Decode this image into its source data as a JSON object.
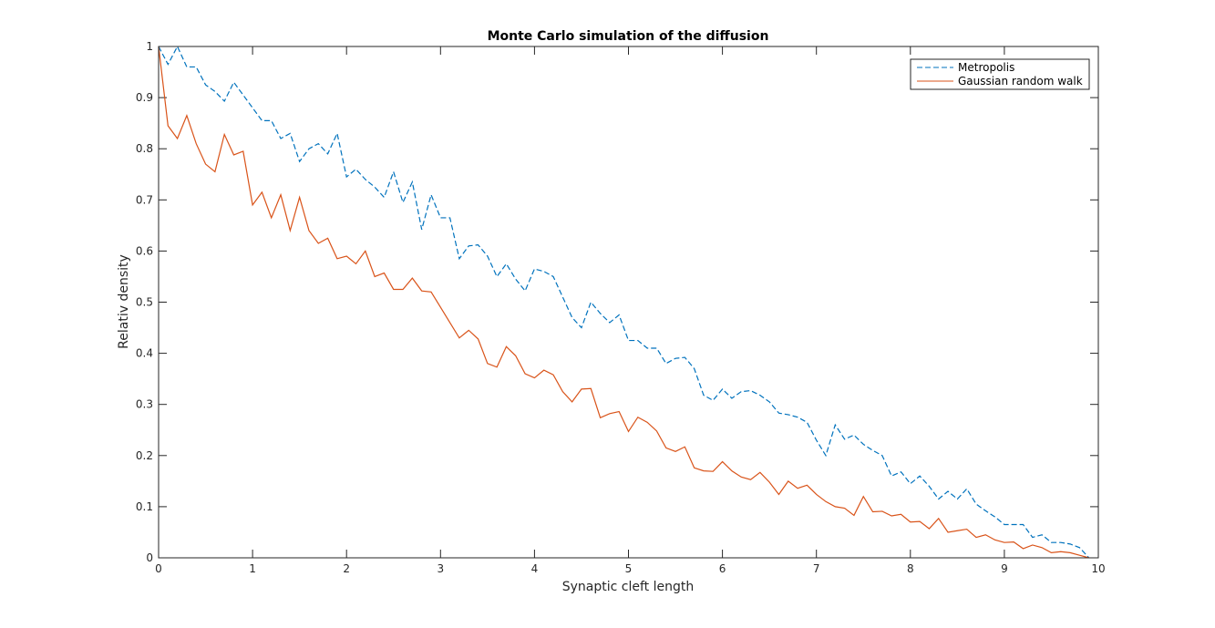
{
  "chart_data": {
    "type": "line",
    "title": "Monte Carlo simulation of the diffusion",
    "xlabel": "Synaptic cleft length",
    "ylabel": "Relativ density",
    "xlim": [
      0,
      10
    ],
    "ylim": [
      0,
      1
    ],
    "xticks": [
      "0",
      "1",
      "2",
      "3",
      "4",
      "5",
      "6",
      "7",
      "8",
      "9",
      "10"
    ],
    "yticks": [
      "0",
      "0.1",
      "0.2",
      "0.3",
      "0.4",
      "0.5",
      "0.6",
      "0.7",
      "0.8",
      "0.9",
      "1"
    ],
    "grid": false,
    "legend_position": "top-right",
    "x": [
      0.0,
      0.1,
      0.2,
      0.3,
      0.4,
      0.5,
      0.6,
      0.7,
      0.8,
      0.9,
      1.0,
      1.1,
      1.2,
      1.3,
      1.4,
      1.5,
      1.6,
      1.7,
      1.8,
      1.9,
      2.0,
      2.1,
      2.2,
      2.3,
      2.4,
      2.5,
      2.6,
      2.7,
      2.8,
      2.9,
      3.0,
      3.1,
      3.2,
      3.3,
      3.4,
      3.5,
      3.6,
      3.7,
      3.8,
      3.9,
      4.0,
      4.1,
      4.2,
      4.3,
      4.4,
      4.5,
      4.6,
      4.7,
      4.8,
      4.9,
      5.0,
      5.1,
      5.2,
      5.3,
      5.4,
      5.5,
      5.6,
      5.7,
      5.8,
      5.9,
      6.0,
      6.1,
      6.2,
      6.3,
      6.4,
      6.5,
      6.6,
      6.7,
      6.8,
      6.9,
      7.0,
      7.1,
      7.2,
      7.3,
      7.4,
      7.5,
      7.6,
      7.7,
      7.8,
      7.9,
      8.0,
      8.1,
      8.2,
      8.3,
      8.4,
      8.5,
      8.6,
      8.7,
      8.8,
      8.9,
      9.0,
      9.1,
      9.2,
      9.3,
      9.4,
      9.5,
      9.6,
      9.7,
      9.8,
      9.9
    ],
    "series": [
      {
        "name": "Metropolis",
        "color": "#0072BD",
        "style": "dashed",
        "values": [
          1.0,
          0.965,
          1.0,
          0.96,
          0.96,
          0.925,
          0.912,
          0.893,
          0.93,
          0.905,
          0.88,
          0.855,
          0.855,
          0.82,
          0.83,
          0.775,
          0.8,
          0.81,
          0.79,
          0.83,
          0.745,
          0.76,
          0.74,
          0.725,
          0.705,
          0.755,
          0.695,
          0.735,
          0.642,
          0.71,
          0.665,
          0.665,
          0.585,
          0.61,
          0.612,
          0.59,
          0.55,
          0.575,
          0.545,
          0.522,
          0.565,
          0.56,
          0.55,
          0.51,
          0.47,
          0.45,
          0.5,
          0.478,
          0.46,
          0.475,
          0.425,
          0.425,
          0.41,
          0.41,
          0.38,
          0.39,
          0.392,
          0.37,
          0.318,
          0.308,
          0.33,
          0.312,
          0.325,
          0.327,
          0.318,
          0.305,
          0.283,
          0.28,
          0.275,
          0.265,
          0.23,
          0.2,
          0.26,
          0.232,
          0.24,
          0.222,
          0.21,
          0.2,
          0.16,
          0.168,
          0.145,
          0.16,
          0.14,
          0.115,
          0.13,
          0.115,
          0.135,
          0.105,
          0.092,
          0.08,
          0.065,
          0.065,
          0.065,
          0.04,
          0.045,
          0.03,
          0.03,
          0.027,
          0.02,
          0.0
        ]
      },
      {
        "name": "Gaussian random walk",
        "color": "#D95319",
        "style": "solid",
        "values": [
          1.0,
          0.845,
          0.82,
          0.865,
          0.81,
          0.77,
          0.755,
          0.828,
          0.788,
          0.795,
          0.69,
          0.715,
          0.665,
          0.71,
          0.64,
          0.705,
          0.64,
          0.615,
          0.625,
          0.585,
          0.59,
          0.575,
          0.6,
          0.55,
          0.557,
          0.525,
          0.525,
          0.547,
          0.522,
          0.52,
          0.49,
          0.46,
          0.43,
          0.445,
          0.428,
          0.38,
          0.373,
          0.413,
          0.395,
          0.36,
          0.352,
          0.367,
          0.358,
          0.325,
          0.305,
          0.33,
          0.331,
          0.274,
          0.282,
          0.286,
          0.247,
          0.275,
          0.265,
          0.248,
          0.215,
          0.208,
          0.217,
          0.176,
          0.17,
          0.169,
          0.188,
          0.17,
          0.158,
          0.153,
          0.167,
          0.148,
          0.124,
          0.15,
          0.136,
          0.142,
          0.124,
          0.11,
          0.1,
          0.097,
          0.083,
          0.12,
          0.09,
          0.091,
          0.082,
          0.085,
          0.07,
          0.071,
          0.057,
          0.077,
          0.05,
          0.053,
          0.056,
          0.04,
          0.045,
          0.035,
          0.03,
          0.031,
          0.018,
          0.025,
          0.02,
          0.01,
          0.012,
          0.01,
          0.005,
          0.0
        ]
      }
    ]
  }
}
